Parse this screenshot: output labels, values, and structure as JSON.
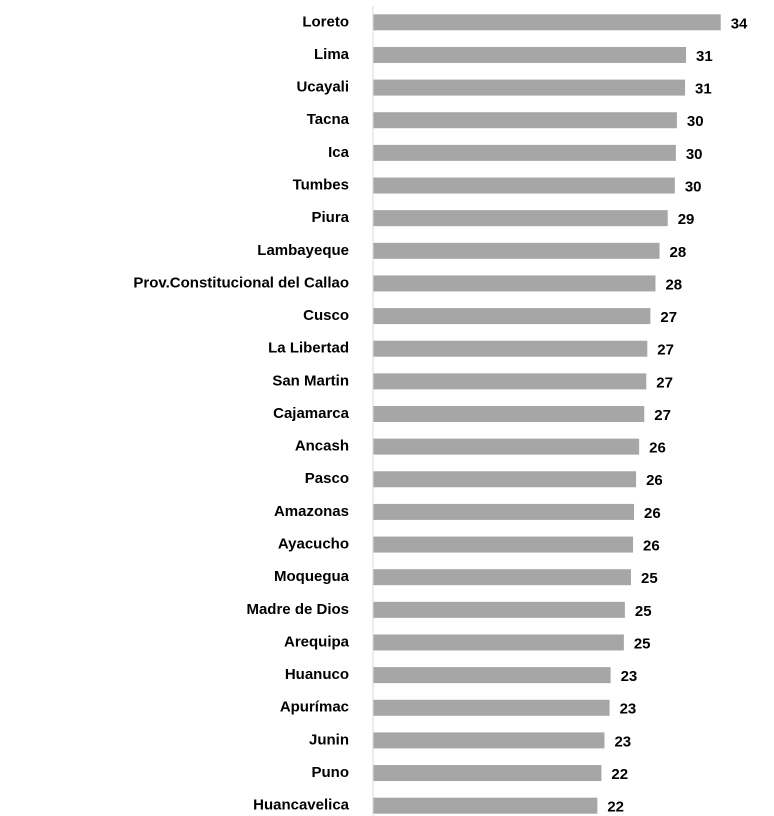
{
  "chart_data": {
    "type": "bar",
    "orientation": "horizontal",
    "categories": [
      "Loreto",
      "Lima",
      "Ucayali",
      "Tacna",
      "Ica",
      "Tumbes",
      "Piura",
      "Lambayeque",
      "Prov.Constitucional del Callao",
      "Cusco",
      "La Libertad",
      "San Martin",
      "Cajamarca",
      "Ancash",
      "Pasco",
      "Amazonas",
      "Ayacucho",
      "Moquegua",
      "Madre de Dios",
      "Arequipa",
      "Huanuco",
      "Apurímac",
      "Junin",
      "Puno",
      "Huancavelica"
    ],
    "values": [
      34.1,
      30.7,
      30.6,
      29.8,
      29.7,
      29.6,
      28.9,
      28.1,
      27.7,
      27.2,
      26.9,
      26.8,
      26.6,
      26.1,
      25.8,
      25.6,
      25.5,
      25.3,
      24.7,
      24.6,
      23.3,
      23.2,
      22.7,
      22.4,
      22.0
    ],
    "value_labels": [
      "34",
      "31",
      "31",
      "30",
      "30",
      "30",
      "29",
      "28",
      "28",
      "27",
      "27",
      "27",
      "27",
      "26",
      "26",
      "26",
      "26",
      "25",
      "25",
      "25",
      "23",
      "23",
      "23",
      "22",
      "22"
    ],
    "color": "#a6a6a6",
    "xlim": [
      0,
      35.5
    ]
  }
}
